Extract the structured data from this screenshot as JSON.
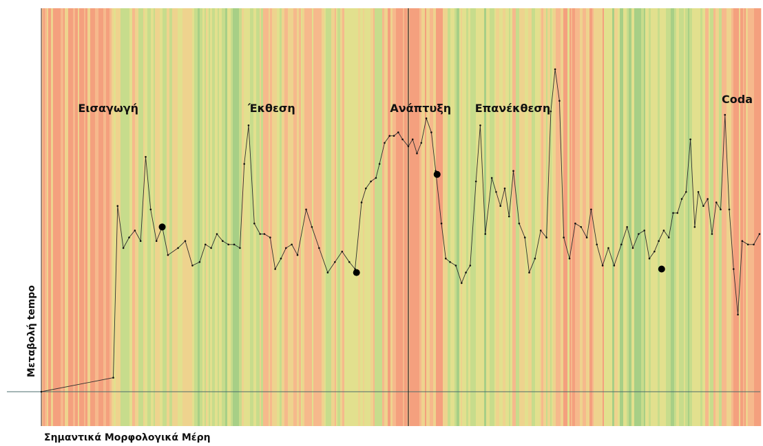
{
  "chart_data": {
    "type": "line",
    "title": "",
    "xlabel": "Σημαντικά Μορφολογικά Μέρη",
    "ylabel": "Μεταβολή tempo",
    "xlim": [
      0,
      1
    ],
    "ylim": [
      0,
      1
    ],
    "grid": false,
    "legend": "none",
    "background_stripe_palette": [
      "#f4a07e",
      "#f6b98c",
      "#eed38e",
      "#e2e08e",
      "#c7dc8c",
      "#a7cf86",
      "#8cc283"
    ],
    "section_labels": [
      {
        "text": "Εισαγωγή",
        "x": 0.093
      },
      {
        "text": "Έκθεση",
        "x": 0.32
      },
      {
        "text": "Ανάπτυξη",
        "x": 0.527
      },
      {
        "text": "Επανέκθεση",
        "x": 0.655
      },
      {
        "text": "Coda",
        "x": 0.967
      }
    ],
    "divider_x": 0.51,
    "series": [
      {
        "values": [
          [
            0.0,
            0.0
          ],
          [
            0.1,
            0.04
          ],
          [
            0.106,
            0.53
          ],
          [
            0.114,
            0.41
          ],
          [
            0.122,
            0.44
          ],
          [
            0.13,
            0.46
          ],
          [
            0.138,
            0.43
          ],
          [
            0.145,
            0.67
          ],
          [
            0.152,
            0.52
          ],
          [
            0.16,
            0.43
          ],
          [
            0.168,
            0.47
          ],
          [
            0.176,
            0.39
          ],
          [
            0.19,
            0.41
          ],
          [
            0.2,
            0.43
          ],
          [
            0.21,
            0.36
          ],
          [
            0.22,
            0.37
          ],
          [
            0.228,
            0.42
          ],
          [
            0.236,
            0.41
          ],
          [
            0.244,
            0.45
          ],
          [
            0.252,
            0.43
          ],
          [
            0.26,
            0.42
          ],
          [
            0.268,
            0.42
          ],
          [
            0.276,
            0.41
          ],
          [
            0.282,
            0.65
          ],
          [
            0.288,
            0.76
          ],
          [
            0.296,
            0.48
          ],
          [
            0.304,
            0.45
          ],
          [
            0.31,
            0.45
          ],
          [
            0.318,
            0.44
          ],
          [
            0.325,
            0.35
          ],
          [
            0.333,
            0.38
          ],
          [
            0.34,
            0.41
          ],
          [
            0.348,
            0.42
          ],
          [
            0.356,
            0.39
          ],
          [
            0.368,
            0.52
          ],
          [
            0.376,
            0.47
          ],
          [
            0.386,
            0.41
          ],
          [
            0.398,
            0.34
          ],
          [
            0.408,
            0.37
          ],
          [
            0.418,
            0.4
          ],
          [
            0.428,
            0.37
          ],
          [
            0.436,
            0.35
          ],
          [
            0.445,
            0.54
          ],
          [
            0.451,
            0.58
          ],
          [
            0.458,
            0.6
          ],
          [
            0.465,
            0.61
          ],
          [
            0.47,
            0.65
          ],
          [
            0.477,
            0.71
          ],
          [
            0.484,
            0.73
          ],
          [
            0.49,
            0.73
          ],
          [
            0.496,
            0.74
          ],
          [
            0.502,
            0.72
          ],
          [
            0.51,
            0.7
          ],
          [
            0.516,
            0.72
          ],
          [
            0.522,
            0.68
          ],
          [
            0.528,
            0.71
          ],
          [
            0.535,
            0.78
          ],
          [
            0.542,
            0.74
          ],
          [
            0.548,
            0.63
          ],
          [
            0.556,
            0.48
          ],
          [
            0.562,
            0.38
          ],
          [
            0.568,
            0.37
          ],
          [
            0.576,
            0.36
          ],
          [
            0.584,
            0.31
          ],
          [
            0.59,
            0.34
          ],
          [
            0.596,
            0.36
          ],
          [
            0.604,
            0.6
          ],
          [
            0.61,
            0.76
          ],
          [
            0.617,
            0.45
          ],
          [
            0.626,
            0.61
          ],
          [
            0.632,
            0.57
          ],
          [
            0.638,
            0.53
          ],
          [
            0.644,
            0.58
          ],
          [
            0.65,
            0.5
          ],
          [
            0.656,
            0.63
          ],
          [
            0.664,
            0.48
          ],
          [
            0.672,
            0.44
          ],
          [
            0.678,
            0.34
          ],
          [
            0.686,
            0.38
          ],
          [
            0.694,
            0.46
          ],
          [
            0.702,
            0.44
          ],
          [
            0.708,
            0.8
          ],
          [
            0.714,
            0.92
          ],
          [
            0.72,
            0.83
          ],
          [
            0.726,
            0.44
          ],
          [
            0.734,
            0.38
          ],
          [
            0.742,
            0.48
          ],
          [
            0.75,
            0.47
          ],
          [
            0.758,
            0.44
          ],
          [
            0.764,
            0.52
          ],
          [
            0.772,
            0.42
          ],
          [
            0.78,
            0.36
          ],
          [
            0.788,
            0.41
          ],
          [
            0.796,
            0.36
          ],
          [
            0.806,
            0.42
          ],
          [
            0.814,
            0.47
          ],
          [
            0.822,
            0.41
          ],
          [
            0.83,
            0.45
          ],
          [
            0.838,
            0.46
          ],
          [
            0.845,
            0.38
          ],
          [
            0.852,
            0.4
          ],
          [
            0.858,
            0.43
          ],
          [
            0.865,
            0.46
          ],
          [
            0.872,
            0.44
          ],
          [
            0.878,
            0.51
          ],
          [
            0.884,
            0.51
          ],
          [
            0.89,
            0.55
          ],
          [
            0.896,
            0.57
          ],
          [
            0.902,
            0.72
          ],
          [
            0.908,
            0.47
          ],
          [
            0.913,
            0.57
          ],
          [
            0.92,
            0.53
          ],
          [
            0.926,
            0.55
          ],
          [
            0.932,
            0.45
          ],
          [
            0.938,
            0.54
          ],
          [
            0.944,
            0.52
          ],
          [
            0.95,
            0.79
          ],
          [
            0.956,
            0.52
          ],
          [
            0.962,
            0.35
          ],
          [
            0.968,
            0.22
          ],
          [
            0.974,
            0.43
          ],
          [
            0.982,
            0.42
          ],
          [
            0.99,
            0.42
          ],
          [
            0.998,
            0.45
          ]
        ]
      }
    ],
    "highlight_points": [
      [
        0.168,
        0.47
      ],
      [
        0.438,
        0.34
      ],
      [
        0.55,
        0.62
      ],
      [
        0.862,
        0.35
      ]
    ]
  }
}
